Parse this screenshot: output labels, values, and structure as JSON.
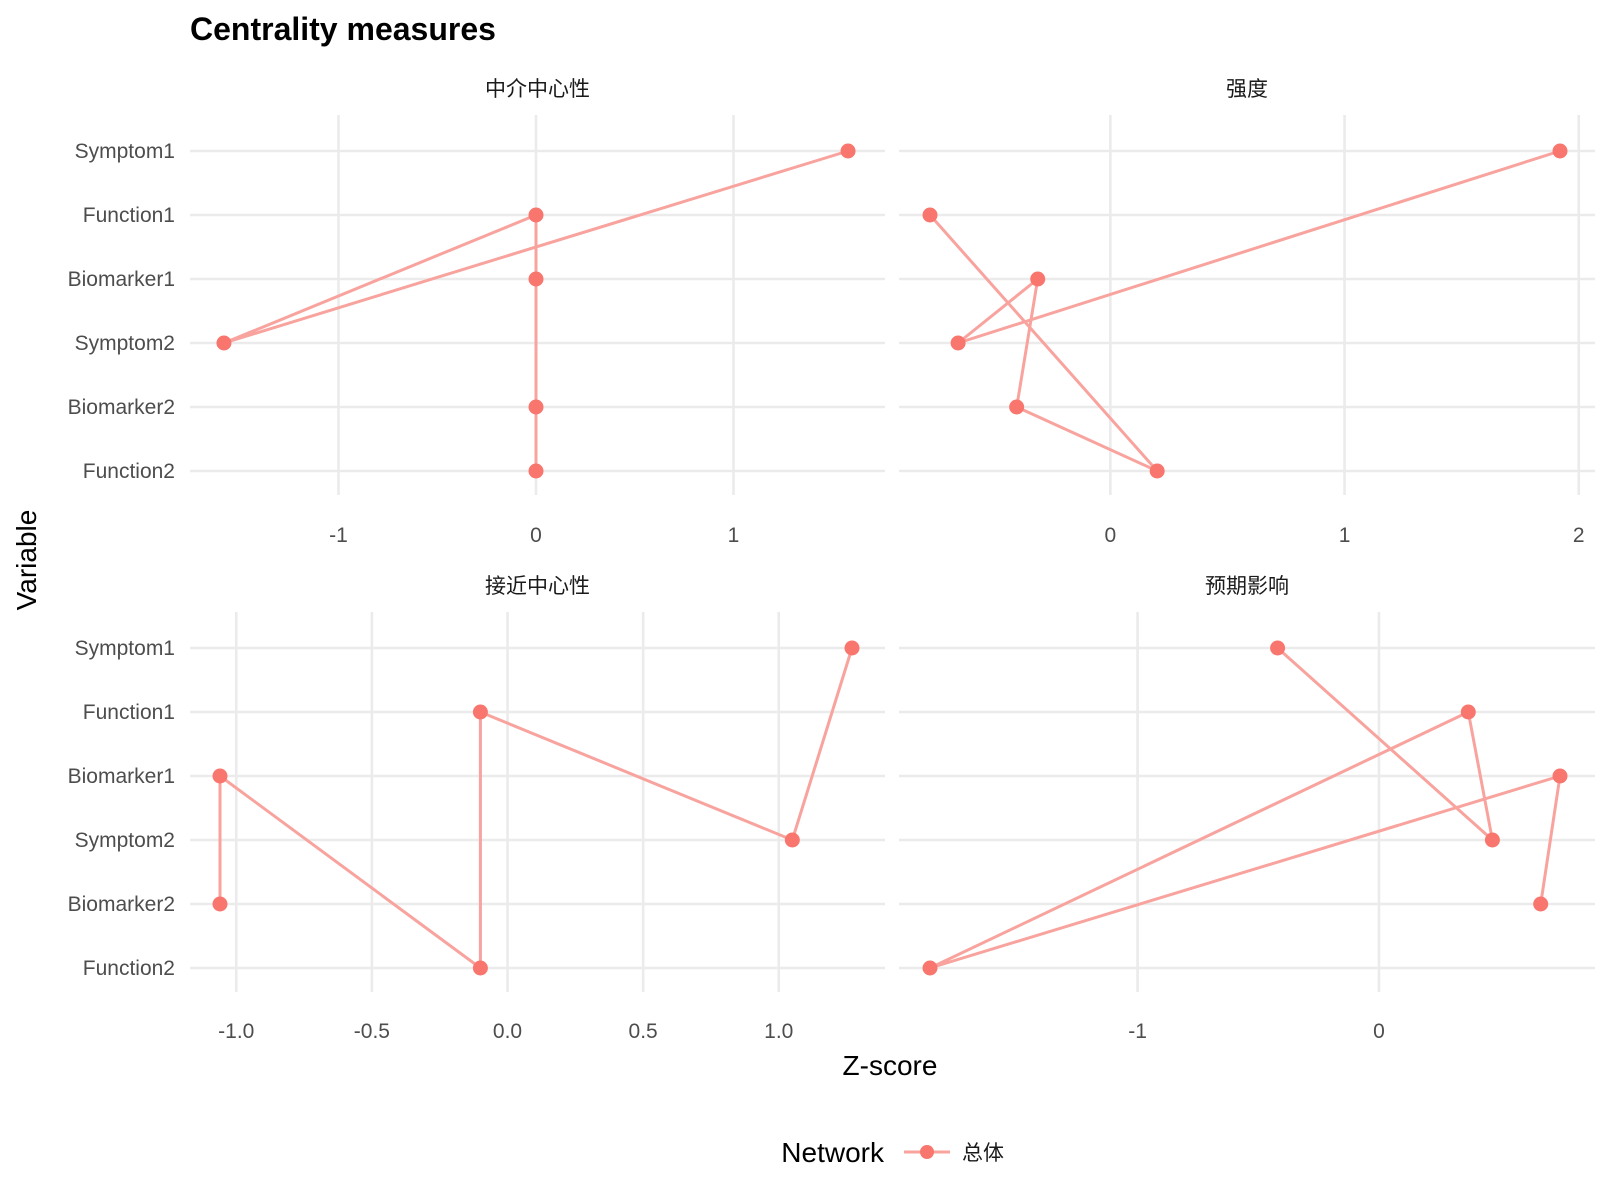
{
  "chart_data": {
    "type": "line",
    "title": "Centrality measures",
    "xlabel": "Z-score",
    "ylabel": "Variable",
    "categories": [
      "Symptom1",
      "Function1",
      "Biomarker1",
      "Symptom2",
      "Biomarker2",
      "Function2"
    ],
    "legend": {
      "title": "Network",
      "position": "bottom",
      "entries": [
        "总体"
      ]
    },
    "series_color": "#F8766D",
    "line_color": "#F8A39E",
    "grid": true,
    "panels": [
      {
        "name": "中介中心性",
        "xlim": [
          -1.6,
          1.6
        ],
        "xticks": [
          -1,
          0,
          1
        ],
        "order": [
          "Symptom1",
          "Symptom2",
          "Function1",
          "Biomarker1",
          "Biomarker2",
          "Function2"
        ],
        "values": {
          "Symptom1": 1.58,
          "Function1": 0.0,
          "Biomarker1": 0.0,
          "Symptom2": -1.58,
          "Biomarker2": 0.0,
          "Function2": 0.0
        }
      },
      {
        "name": "强度",
        "xlim": [
          -0.77,
          1.92
        ],
        "xticks": [
          0,
          1,
          2
        ],
        "order": [
          "Symptom1",
          "Symptom2",
          "Biomarker1",
          "Biomarker2",
          "Function2",
          "Function1"
        ],
        "values": {
          "Symptom1": 1.92,
          "Function1": -0.77,
          "Biomarker1": -0.31,
          "Symptom2": -0.65,
          "Biomarker2": -0.4,
          "Function2": 0.2
        }
      },
      {
        "name": "接近中心性",
        "xlim": [
          -1.06,
          1.27
        ],
        "xticks": [
          -1.0,
          -0.5,
          0.0,
          0.5,
          1.0
        ],
        "xtick_labels": [
          "-1.0",
          "-0.5",
          "0.0",
          "0.5",
          "1.0"
        ],
        "order": [
          "Symptom1",
          "Symptom2",
          "Function1",
          "Function2",
          "Biomarker1",
          "Biomarker2"
        ],
        "values": {
          "Symptom1": 1.27,
          "Function1": -0.1,
          "Biomarker1": -1.06,
          "Symptom2": 1.05,
          "Biomarker2": -1.06,
          "Function2": -0.1
        }
      },
      {
        "name": "预期影响",
        "xlim": [
          -1.86,
          0.75
        ],
        "xticks": [
          -1,
          0
        ],
        "order": [
          "Symptom1",
          "Symptom2",
          "Function1",
          "Function2",
          "Biomarker1",
          "Biomarker2"
        ],
        "values": {
          "Symptom1": -0.42,
          "Function1": 0.37,
          "Biomarker1": 0.75,
          "Symptom2": 0.47,
          "Biomarker2": 0.67,
          "Function2": -1.86
        }
      }
    ]
  }
}
